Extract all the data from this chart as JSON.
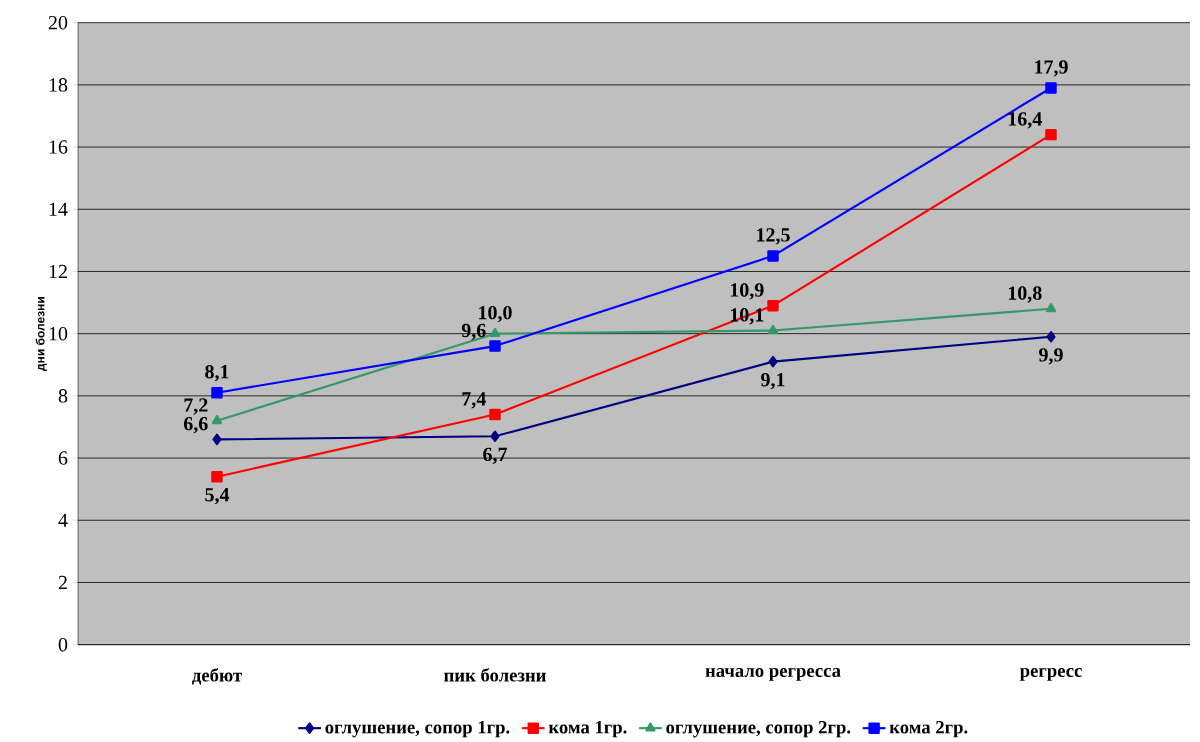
{
  "chart_data": {
    "type": "line",
    "ylabel": "дни болезни",
    "categories": [
      "дебют",
      "пик болезни",
      "начало регресса",
      "регресс"
    ],
    "series": [
      {
        "name": "оглушение, сопор 1гр.",
        "color": "#000080",
        "marker": "diamond",
        "values": [
          6.6,
          6.7,
          9.1,
          9.9
        ],
        "value_labels": [
          "6,6",
          "6,7",
          "9,1",
          "9,9"
        ]
      },
      {
        "name": "кома 1гр.",
        "color": "#ff0000",
        "marker": "square",
        "values": [
          5.4,
          7.4,
          10.9,
          16.4
        ],
        "value_labels": [
          "5,4",
          "7,4",
          "10,9",
          "16,4"
        ]
      },
      {
        "name": "оглушение, сопор 2гр.",
        "color": "#339966",
        "marker": "triangle",
        "values": [
          7.2,
          10.0,
          10.1,
          10.8
        ],
        "value_labels": [
          "7,2",
          "10,0",
          "10,1",
          "10,8"
        ]
      },
      {
        "name": "кома 2гр.",
        "color": "#0000ff",
        "marker": "square",
        "values": [
          8.1,
          9.6,
          12.5,
          17.9
        ],
        "value_labels": [
          "8,1",
          "9,6",
          "12,5",
          "17,9"
        ]
      }
    ],
    "ylim": [
      0,
      20
    ],
    "yticks": [
      0,
      2,
      4,
      6,
      8,
      10,
      12,
      14,
      16,
      18,
      20
    ],
    "grid": "y",
    "legend": "bottom"
  }
}
